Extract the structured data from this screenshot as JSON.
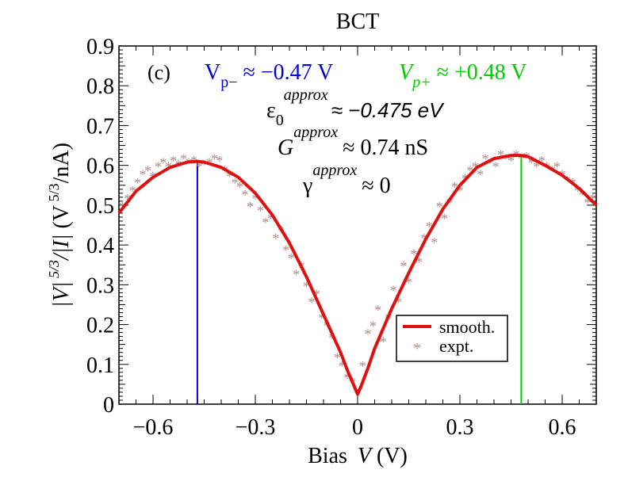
{
  "chart_data": {
    "type": "scatter",
    "title": "BCT",
    "panel_label": "(c)",
    "xlabel": {
      "prefix": "Bias ",
      "var": "V",
      "unit": " (V)"
    },
    "ylabel": "|V|^(5/3)/|I| (V^(5/3)/nA)",
    "xlim": [
      -0.7,
      0.7
    ],
    "ylim": [
      0,
      0.9
    ],
    "x_ticks": [
      -0.6,
      -0.3,
      0,
      0.3,
      0.6
    ],
    "x_tick_labels": [
      "−0.6",
      "−0.3",
      "0",
      "0.3",
      "0.6"
    ],
    "y_ticks": [
      0,
      0.1,
      0.2,
      0.3,
      0.4,
      0.5,
      0.6,
      0.7,
      0.8,
      0.9
    ],
    "y_tick_labels": [
      "0",
      "0.1",
      "0.2",
      "0.3",
      "0.4",
      "0.5",
      "0.6",
      "0.7",
      "0.8",
      "0.9"
    ],
    "annotations": {
      "vpm": {
        "label": "V",
        "sub": "p−",
        "text": " ≈ −0.47 V",
        "value": -0.47
      },
      "vpp": {
        "label": "V",
        "sub": "p+",
        "text": " ≈ +0.48 V",
        "value": 0.48
      },
      "eps": {
        "symbol": "ε",
        "sub": "0",
        "sup": "approx",
        "text": "≈ −0.475 eV"
      },
      "g": {
        "symbol": "G",
        "sup": "approx",
        "text": "≈ 0.74 nS"
      },
      "gamma": {
        "symbol": "γ",
        "sup": "approx",
        "text": "≈ 0"
      }
    },
    "vertical_lines": [
      {
        "x": -0.47,
        "y_top": 0.61,
        "color": "#0000cc"
      },
      {
        "x": 0.48,
        "y_top": 0.625,
        "color": "#00cc00"
      }
    ],
    "series": [
      {
        "name": "smooth.",
        "kind": "line",
        "color": "#e01010",
        "x": [
          -0.7,
          -0.65,
          -0.6,
          -0.55,
          -0.5,
          -0.47,
          -0.45,
          -0.4,
          -0.35,
          -0.3,
          -0.25,
          -0.2,
          -0.15,
          -0.1,
          -0.05,
          -0.03,
          -0.01,
          0,
          0.01,
          0.03,
          0.05,
          0.1,
          0.15,
          0.2,
          0.25,
          0.3,
          0.35,
          0.4,
          0.45,
          0.48,
          0.5,
          0.55,
          0.6,
          0.65,
          0.7
        ],
        "y": [
          0.48,
          0.535,
          0.57,
          0.595,
          0.608,
          0.61,
          0.608,
          0.595,
          0.57,
          0.53,
          0.475,
          0.405,
          0.32,
          0.225,
          0.13,
          0.085,
          0.045,
          0.025,
          0.045,
          0.09,
          0.14,
          0.24,
          0.33,
          0.415,
          0.49,
          0.55,
          0.595,
          0.617,
          0.625,
          0.625,
          0.622,
          0.6,
          0.575,
          0.542,
          0.5
        ]
      },
      {
        "name": "expt.",
        "kind": "scatter",
        "color": "#b08a8a",
        "x": [
          -0.69,
          -0.675,
          -0.66,
          -0.645,
          -0.63,
          -0.615,
          -0.6,
          -0.585,
          -0.57,
          -0.555,
          -0.54,
          -0.525,
          -0.51,
          -0.495,
          -0.48,
          -0.465,
          -0.45,
          -0.435,
          -0.42,
          -0.405,
          -0.39,
          -0.375,
          -0.36,
          -0.345,
          -0.33,
          -0.315,
          -0.3,
          -0.285,
          -0.27,
          -0.255,
          -0.24,
          -0.225,
          -0.21,
          -0.195,
          -0.18,
          -0.165,
          -0.15,
          -0.135,
          -0.12,
          -0.105,
          -0.09,
          -0.075,
          -0.06,
          -0.045,
          -0.03,
          -0.015,
          0,
          0.015,
          0.03,
          0.045,
          0.06,
          0.075,
          0.09,
          0.105,
          0.12,
          0.135,
          0.15,
          0.165,
          0.18,
          0.195,
          0.21,
          0.225,
          0.24,
          0.255,
          0.27,
          0.285,
          0.3,
          0.315,
          0.33,
          0.345,
          0.36,
          0.375,
          0.39,
          0.405,
          0.42,
          0.435,
          0.45,
          0.465,
          0.48,
          0.495,
          0.51,
          0.525,
          0.54,
          0.555,
          0.57,
          0.585,
          0.6,
          0.615,
          0.63,
          0.645,
          0.66,
          0.675,
          0.69
        ],
        "y": [
          0.5,
          0.52,
          0.54,
          0.56,
          0.58,
          0.59,
          0.575,
          0.6,
          0.61,
          0.6,
          0.615,
          0.605,
          0.62,
          0.61,
          0.615,
          0.6,
          0.605,
          0.61,
          0.62,
          0.615,
          0.59,
          0.575,
          0.56,
          0.55,
          0.53,
          0.5,
          0.52,
          0.49,
          0.46,
          0.47,
          0.42,
          0.44,
          0.39,
          0.37,
          0.33,
          0.35,
          0.3,
          0.26,
          0.28,
          0.22,
          0.2,
          0.17,
          0.12,
          0.1,
          0.07,
          0.06,
          0.03,
          0.1,
          0.18,
          0.2,
          0.24,
          0.16,
          0.22,
          0.29,
          0.26,
          0.35,
          0.31,
          0.38,
          0.36,
          0.42,
          0.45,
          0.41,
          0.5,
          0.47,
          0.51,
          0.55,
          0.54,
          0.57,
          0.59,
          0.6,
          0.58,
          0.62,
          0.61,
          0.6,
          0.63,
          0.62,
          0.615,
          0.63,
          0.62,
          0.625,
          0.61,
          0.6,
          0.615,
          0.6,
          0.59,
          0.6,
          0.58,
          0.565,
          0.56,
          0.54,
          0.53,
          0.51,
          0.52
        ]
      }
    ],
    "legend": {
      "position": "lower-right",
      "entries": [
        "smooth.",
        "expt."
      ]
    }
  }
}
